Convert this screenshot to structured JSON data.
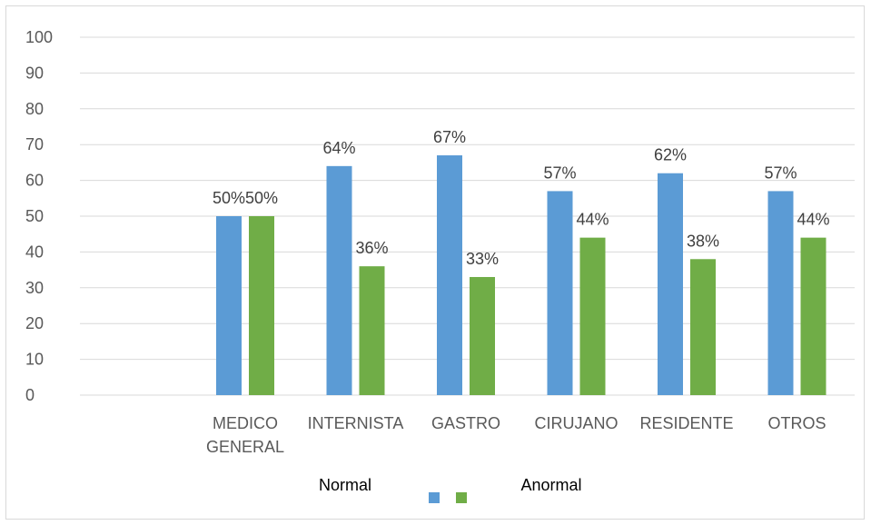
{
  "chart_data": {
    "type": "bar",
    "title": "",
    "xlabel": "",
    "ylabel": "",
    "ylim": [
      0,
      100
    ],
    "yticks": [
      "0",
      "10",
      "20",
      "30",
      "40",
      "50",
      "60",
      "70",
      "80",
      "90",
      "100"
    ],
    "grid": true,
    "legend_position": "bottom",
    "categories": [
      [
        "MEDICO",
        "GENERAL"
      ],
      [
        "INTERNISTA"
      ],
      [
        "GASTRO"
      ],
      [
        "CIRUJANO"
      ],
      [
        "RESIDENTE"
      ],
      [
        "OTROS"
      ]
    ],
    "series": [
      {
        "name": "Normal",
        "color": "#5b9bd5",
        "values": [
          50,
          64,
          67,
          57,
          62,
          57
        ],
        "labels": [
          "50%",
          "64%",
          "67%",
          "57%",
          "62%",
          "57%"
        ]
      },
      {
        "name": "Anormal",
        "color": "#70ad47",
        "values": [
          50,
          36,
          33,
          44,
          38,
          44
        ],
        "labels": [
          "50%",
          "36%",
          "33%",
          "44%",
          "38%",
          "44%"
        ]
      }
    ]
  }
}
